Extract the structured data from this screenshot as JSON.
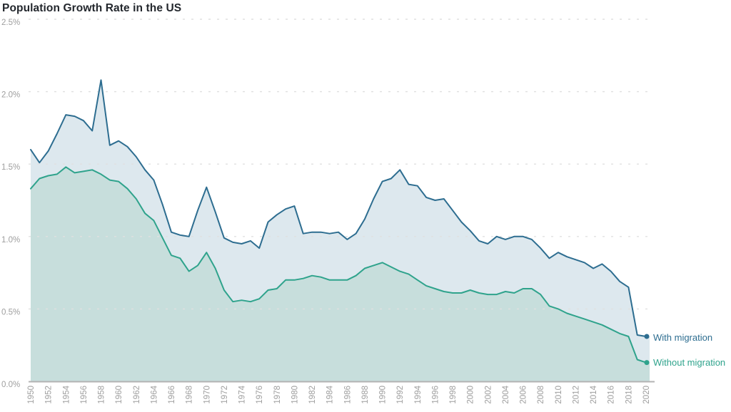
{
  "title": "Population Growth Rate in the US",
  "legend": {
    "with_migration": "With migration",
    "without_migration": "Without migration"
  },
  "colors": {
    "background": "#ffffff",
    "title_text": "#23272d",
    "axis_text": "#9e9e9e",
    "gridline": "#e0e0e0",
    "axis_line": "#b3b3b3",
    "with_migration_line": "#2d6d90",
    "with_migration_fill": "#dde8ee",
    "without_migration_line": "#2fa38c",
    "without_migration_fill": "#c7dedc"
  },
  "chart_data": {
    "type": "area",
    "title": "Population Growth Rate in the US",
    "xlabel": "",
    "ylabel": "",
    "ylim": [
      0,
      2.5
    ],
    "grid": "horizontal dotted",
    "legend_position": "right of line ends",
    "y_tick_labels": [
      "0.0%",
      "0.5%",
      "1.0%",
      "1.5%",
      "2.0%",
      "2.5%"
    ],
    "x_tick_labels": [
      "1950",
      "1952",
      "1954",
      "1956",
      "1958",
      "1960",
      "1962",
      "1964",
      "1966",
      "1968",
      "1970",
      "1972",
      "1974",
      "1976",
      "1978",
      "1980",
      "1982",
      "1984",
      "1986",
      "1988",
      "1990",
      "1992",
      "1994",
      "1996",
      "1998",
      "2000",
      "2002",
      "2004",
      "2006",
      "2008",
      "2010",
      "2012",
      "2014",
      "2016",
      "2018",
      "2020"
    ],
    "years": [
      1950,
      1951,
      1952,
      1953,
      1954,
      1955,
      1956,
      1957,
      1958,
      1959,
      1960,
      1961,
      1962,
      1963,
      1964,
      1965,
      1966,
      1967,
      1968,
      1969,
      1970,
      1971,
      1972,
      1973,
      1974,
      1975,
      1976,
      1977,
      1978,
      1979,
      1980,
      1981,
      1982,
      1983,
      1984,
      1985,
      1986,
      1987,
      1988,
      1989,
      1990,
      1991,
      1992,
      1993,
      1994,
      1995,
      1996,
      1997,
      1998,
      1999,
      2000,
      2001,
      2002,
      2003,
      2004,
      2005,
      2006,
      2007,
      2008,
      2009,
      2010,
      2011,
      2012,
      2013,
      2014,
      2015,
      2016,
      2017,
      2018,
      2019,
      2020
    ],
    "series": [
      {
        "name": "With migration",
        "unit": "%",
        "line_color": "#2d6d90",
        "fill_color": "#dde8ee",
        "values": [
          1.6,
          1.51,
          1.59,
          1.71,
          1.84,
          1.83,
          1.8,
          1.73,
          2.08,
          1.63,
          1.66,
          1.62,
          1.55,
          1.46,
          1.39,
          1.22,
          1.03,
          1.01,
          1.0,
          1.18,
          1.34,
          1.17,
          0.99,
          0.96,
          0.95,
          0.97,
          0.92,
          1.1,
          1.15,
          1.19,
          1.21,
          1.02,
          1.03,
          1.03,
          1.02,
          1.03,
          0.98,
          1.02,
          1.12,
          1.26,
          1.38,
          1.4,
          1.46,
          1.36,
          1.35,
          1.27,
          1.25,
          1.26,
          1.18,
          1.1,
          1.04,
          0.97,
          0.95,
          1.0,
          0.98,
          1.0,
          1.0,
          0.98,
          0.92,
          0.85,
          0.89,
          0.86,
          0.84,
          0.82,
          0.78,
          0.81,
          0.76,
          0.69,
          0.65,
          0.32,
          0.31
        ]
      },
      {
        "name": "Without migration",
        "unit": "%",
        "line_color": "#2fa38c",
        "fill_color": "#c7dedc",
        "values": [
          1.33,
          1.4,
          1.42,
          1.43,
          1.48,
          1.44,
          1.45,
          1.46,
          1.43,
          1.39,
          1.38,
          1.33,
          1.26,
          1.16,
          1.11,
          0.99,
          0.87,
          0.85,
          0.76,
          0.8,
          0.89,
          0.78,
          0.63,
          0.55,
          0.56,
          0.55,
          0.57,
          0.63,
          0.64,
          0.7,
          0.7,
          0.71,
          0.73,
          0.72,
          0.7,
          0.7,
          0.7,
          0.73,
          0.78,
          0.8,
          0.82,
          0.79,
          0.76,
          0.74,
          0.7,
          0.66,
          0.64,
          0.62,
          0.61,
          0.61,
          0.63,
          0.61,
          0.6,
          0.6,
          0.62,
          0.61,
          0.64,
          0.64,
          0.6,
          0.52,
          0.5,
          0.47,
          0.45,
          0.43,
          0.41,
          0.39,
          0.36,
          0.33,
          0.31,
          0.15,
          0.13
        ]
      }
    ]
  }
}
